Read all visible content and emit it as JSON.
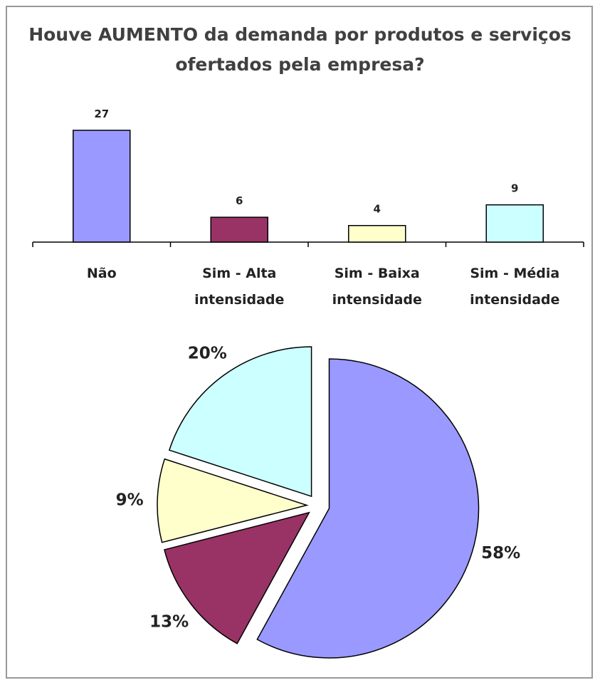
{
  "chart_data": [
    {
      "type": "bar",
      "title": "Houve AUMENTO da demanda por produtos e serviços ofertados pela empresa?",
      "categories": [
        "Não",
        "Sim - Alta intensidade",
        "Sim - Baixa intensidade",
        "Sim - Média intensidade"
      ],
      "values": [
        27,
        6,
        4,
        9
      ],
      "colors": [
        "#9999ff",
        "#993366",
        "#ffffcc",
        "#ccffff"
      ],
      "ylim": [
        0,
        27
      ]
    },
    {
      "type": "pie",
      "values": [
        58,
        13,
        9,
        20
      ],
      "value_labels": [
        "58%",
        "13%",
        "9%",
        "20%"
      ],
      "colors": [
        "#9999ff",
        "#993366",
        "#ffffcc",
        "#ccffff"
      ]
    }
  ]
}
